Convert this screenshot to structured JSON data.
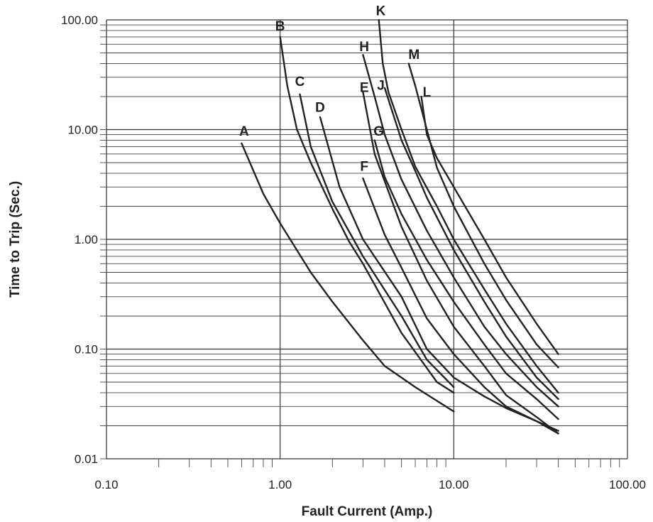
{
  "chart_data": {
    "type": "line",
    "xlabel": "Fault Current (Amp.)",
    "ylabel": "Time to Trip (Sec.)",
    "x_scale": "log",
    "y_scale": "log",
    "xlim": [
      0.1,
      100
    ],
    "ylim": [
      0.01,
      100
    ],
    "x_ticks": [
      "0.10",
      "1.00",
      "10.00",
      "100.00"
    ],
    "y_ticks": [
      "0.01",
      "0.10",
      "1.00",
      "10.00",
      "100.00"
    ],
    "grid": "horizontal major and minor lines; vertical major lines with minor tick marks on x axis",
    "legend": "none (curves labeled directly)",
    "series": [
      {
        "name": "A",
        "x": [
          0.6,
          0.8,
          1.0,
          1.5,
          2.0,
          3.0,
          4.0,
          6.0,
          10.0
        ],
        "y": [
          7.5,
          2.6,
          1.4,
          0.5,
          0.27,
          0.12,
          0.07,
          0.045,
          0.027
        ]
      },
      {
        "name": "B",
        "x": [
          1.0,
          1.1,
          1.25,
          1.5,
          2.0,
          2.5,
          3.0,
          5.0,
          8.0,
          10.0
        ],
        "y": [
          70,
          25,
          10,
          5.0,
          1.9,
          0.95,
          0.6,
          0.14,
          0.05,
          0.04
        ]
      },
      {
        "name": "C",
        "x": [
          1.3,
          1.5,
          2.0,
          3.0,
          5.0,
          7.0,
          10.0
        ],
        "y": [
          21,
          7.0,
          2.2,
          0.7,
          0.2,
          0.08,
          0.045
        ]
      },
      {
        "name": "D",
        "x": [
          1.7,
          2.2,
          3.0,
          5.0,
          7.0,
          10.0,
          15.0,
          20.0,
          30.0,
          40.0
        ],
        "y": [
          13,
          3.0,
          1.0,
          0.3,
          0.1,
          0.055,
          0.037,
          0.029,
          0.022,
          0.018
        ]
      },
      {
        "name": "E",
        "x": [
          3.0,
          3.5,
          5.0,
          7.0,
          10.0,
          15.0,
          20.0,
          30.0,
          40.0
        ],
        "y": [
          22,
          6.0,
          1.3,
          0.42,
          0.16,
          0.07,
          0.038,
          0.024,
          0.017
        ]
      },
      {
        "name": "F",
        "x": [
          3.0,
          4.0,
          5.0,
          7.0,
          10.0,
          15.0,
          20.0,
          30.0,
          40.0
        ],
        "y": [
          3.6,
          1.1,
          0.55,
          0.19,
          0.09,
          0.045,
          0.03,
          0.022,
          0.017
        ]
      },
      {
        "name": "G",
        "x": [
          3.5,
          4.0,
          5.0,
          7.0,
          10.0,
          15.0,
          20.0,
          30.0,
          40.0
        ],
        "y": [
          8.0,
          3.7,
          1.7,
          0.65,
          0.27,
          0.11,
          0.06,
          0.035,
          0.023
        ]
      },
      {
        "name": "H",
        "x": [
          3.0,
          3.5,
          4.0,
          5.0,
          7.0,
          10.0,
          15.0,
          20.0,
          30.0,
          40.0
        ],
        "y": [
          48,
          20,
          9.0,
          3.5,
          1.2,
          0.45,
          0.16,
          0.09,
          0.045,
          0.03
        ]
      },
      {
        "name": "J",
        "x": [
          4.0,
          5.0,
          6.0,
          7.0,
          10.0,
          15.0,
          20.0,
          30.0,
          40.0
        ],
        "y": [
          24,
          8.0,
          4.2,
          2.4,
          0.8,
          0.27,
          0.13,
          0.055,
          0.035
        ]
      },
      {
        "name": "K",
        "x": [
          3.7,
          3.9,
          4.2,
          5.0,
          6.0,
          8.0,
          10.0,
          15.0,
          20.0,
          30.0,
          40.0
        ],
        "y": [
          100,
          40,
          22,
          10,
          4.6,
          2.0,
          1.0,
          0.35,
          0.17,
          0.07,
          0.04
        ]
      },
      {
        "name": "L",
        "x": [
          6.5,
          7.0,
          8.0,
          10.0,
          15.0,
          20.0,
          30.0,
          40.0
        ],
        "y": [
          20,
          9.0,
          5.5,
          3.0,
          1.0,
          0.45,
          0.17,
          0.09
        ]
      },
      {
        "name": "M",
        "x": [
          5.5,
          6.0,
          7.0,
          8.0,
          10.0,
          15.0,
          20.0,
          30.0,
          40.0
        ],
        "y": [
          40,
          25,
          10,
          4.5,
          2.0,
          0.6,
          0.28,
          0.11,
          0.068
        ]
      }
    ],
    "label_positions": {
      "A": [
        0.62,
        8.8
      ],
      "B": [
        1.0,
        80
      ],
      "C": [
        1.3,
        25
      ],
      "D": [
        1.7,
        14.5
      ],
      "E": [
        3.05,
        22
      ],
      "F": [
        3.05,
        4.2
      ],
      "G": [
        3.7,
        8.8
      ],
      "H": [
        3.05,
        52
      ],
      "J": [
        3.8,
        23
      ],
      "K": [
        3.8,
        110
      ],
      "L": [
        7.0,
        20
      ],
      "M": [
        5.9,
        44
      ]
    }
  }
}
